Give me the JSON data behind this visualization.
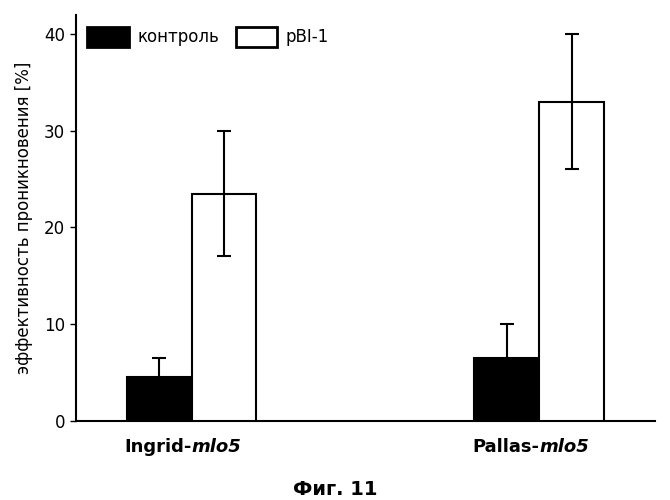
{
  "categories": [
    "Ingrid-mlo5",
    "Pallas-mlo5"
  ],
  "control_values": [
    4.5,
    6.5
  ],
  "pbi1_values": [
    23.5,
    33.0
  ],
  "control_errors": [
    2.0,
    3.5
  ],
  "pbi1_errors": [
    6.5,
    7.0
  ],
  "control_color": "#000000",
  "pbi1_color": "#ffffff",
  "bar_edge_color": "#000000",
  "ylabel": "эффективность проникновения [%]",
  "ylim": [
    0,
    42
  ],
  "yticks": [
    0,
    10,
    20,
    30,
    40
  ],
  "legend_control": "контроль",
  "legend_pbi1": "pBI-1",
  "caption": "Фиг. 11",
  "bar_width": 0.28,
  "group_positions": [
    1.0,
    2.5
  ],
  "figsize": [
    6.7,
    5.0
  ],
  "dpi": 100
}
